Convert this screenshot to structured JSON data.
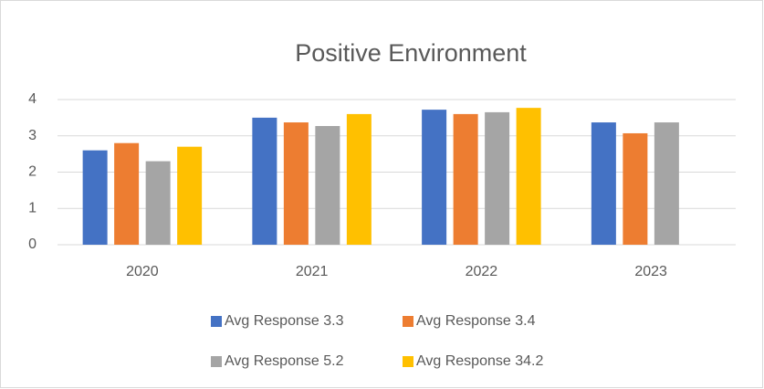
{
  "chart_data": {
    "type": "bar",
    "title": "Positive Environment",
    "categories": [
      "2020",
      "2021",
      "2022",
      "2023"
    ],
    "series": [
      {
        "name": "Avg Response 3.3",
        "color": "#4472c4",
        "values": [
          2.6,
          3.5,
          3.72,
          3.37
        ]
      },
      {
        "name": "Avg Response 3.4",
        "color": "#ed7d31",
        "values": [
          2.8,
          3.37,
          3.6,
          3.07
        ]
      },
      {
        "name": "Avg Response 5.2",
        "color": "#a5a5a5",
        "values": [
          2.3,
          3.27,
          3.65,
          3.37
        ]
      },
      {
        "name": "Avg Response 34.2",
        "color": "#ffc000",
        "values": [
          2.7,
          3.6,
          3.77,
          null
        ]
      }
    ],
    "ylim": [
      0,
      4
    ],
    "yticks": [
      0,
      1,
      2,
      3,
      4
    ],
    "grid": true,
    "legend": "bottom"
  }
}
